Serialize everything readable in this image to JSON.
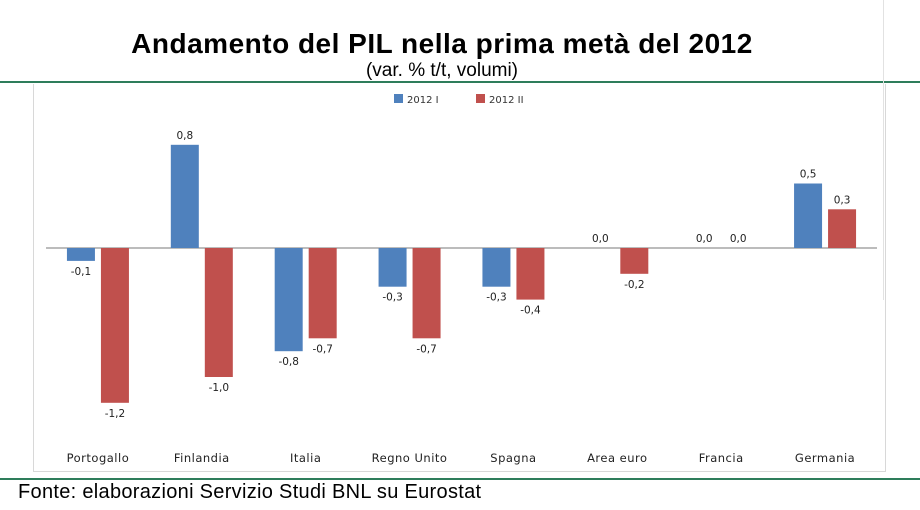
{
  "chart_data": {
    "type": "bar",
    "title": "Andamento del PIL nella prima metà del 2012",
    "subtitle": "(var. % t/t, volumi)",
    "categories": [
      "Portogallo",
      "Finlandia",
      "Italia",
      "Regno Unito",
      "Spagna",
      "Area euro",
      "Francia",
      "Germania"
    ],
    "series": [
      {
        "name": "2012 I",
        "color": "#4f81bd",
        "values": [
          -0.1,
          0.8,
          -0.8,
          -0.3,
          -0.3,
          0.0,
          0.0,
          0.5
        ],
        "labels": [
          "-0,1",
          "0,8",
          "-0,8",
          "-0,3",
          "-0,3",
          "0,0",
          "0,0",
          "0,5"
        ]
      },
      {
        "name": "2012 II",
        "color": "#c0504d",
        "values": [
          -1.2,
          -1.0,
          -0.7,
          -0.7,
          -0.4,
          -0.2,
          0.0,
          0.3
        ],
        "labels": [
          "-1,2",
          "-1,0",
          "-0,7",
          "-0,7",
          "-0,4",
          "-0,2",
          "0,0",
          "0,3"
        ]
      }
    ],
    "ylim": [
      -1.2,
      0.8
    ],
    "legend_position": "top",
    "grid": false
  },
  "footer": {
    "source": "Fonte: elaborazioni Servizio Studi BNL su Eurostat"
  }
}
